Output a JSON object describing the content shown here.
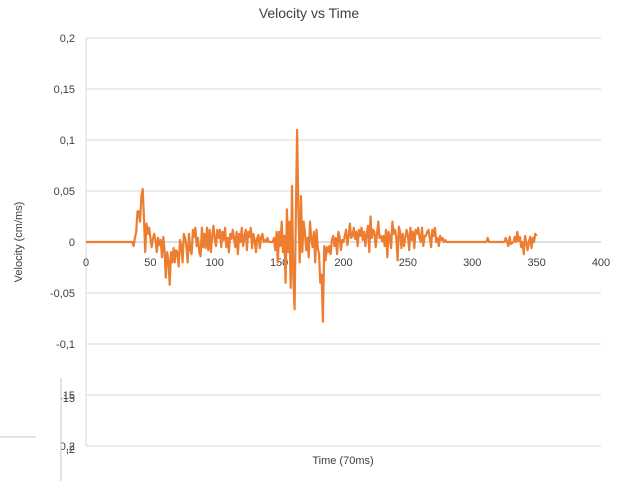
{
  "chart_data": {
    "type": "line",
    "title": "Velocity  vs Time",
    "xlabel": "Time (70ms)",
    "ylabel": "Velocity (cm/ms)",
    "xlim": [
      0,
      400
    ],
    "ylim": [
      -0.2,
      0.2
    ],
    "x_ticks": [
      "0",
      "50",
      "100",
      "150",
      "200",
      "250",
      "300",
      "350",
      "400"
    ],
    "y_ticks": [
      "0,2",
      "0,15",
      "0,1",
      "0,05",
      "0",
      "-0,05",
      "-0,1",
      "-0,15",
      "-0,2"
    ],
    "occluded_y_tick_labels": [
      "15",
      ",2"
    ],
    "grid": "horizontal",
    "legend": "none",
    "series": [
      {
        "color": "#ED7D31",
        "points": [
          [
            0,
            0
          ],
          [
            10,
            0
          ],
          [
            20,
            0
          ],
          [
            30,
            0
          ],
          [
            36,
            0
          ],
          [
            37,
            -0.004
          ],
          [
            38,
            0.004
          ],
          [
            39,
            0.01
          ],
          [
            40,
            0.03
          ],
          [
            41,
            0.03
          ],
          [
            42,
            0.02
          ],
          [
            43,
            0.045
          ],
          [
            44,
            0.052
          ],
          [
            45,
            0.025
          ],
          [
            46,
            -0.01
          ],
          [
            47,
            0.018
          ],
          [
            48,
            0.008
          ],
          [
            49,
            0.014
          ],
          [
            50,
            0.004
          ],
          [
            51,
            -0.005
          ],
          [
            52,
            0.003
          ],
          [
            53,
            0.008
          ],
          [
            54,
            0.002
          ],
          [
            55,
            -0.01
          ],
          [
            56,
            0.004
          ],
          [
            57,
            -0.003
          ],
          [
            58,
            0.002
          ],
          [
            59,
            -0.015
          ],
          [
            60,
            0.005
          ],
          [
            61,
            -0.008
          ],
          [
            62,
            -0.035
          ],
          [
            63,
            -0.01
          ],
          [
            64,
            -0.018
          ],
          [
            65,
            -0.042
          ],
          [
            66,
            -0.01
          ],
          [
            67,
            -0.02
          ],
          [
            68,
            -0.006
          ],
          [
            69,
            -0.02
          ],
          [
            70,
            -0.008
          ],
          [
            71,
            -0.01
          ],
          [
            72,
            -0.024
          ],
          [
            73,
            0.002
          ],
          [
            74,
            -0.004
          ],
          [
            75,
            -0.02
          ],
          [
            76,
            0.008
          ],
          [
            77,
            0.004
          ],
          [
            78,
            -0.004
          ],
          [
            79,
            -0.02
          ],
          [
            80,
            0.008
          ],
          [
            81,
            -0.008
          ],
          [
            82,
            -0.012
          ],
          [
            83,
            0.012
          ],
          [
            84,
            0.005
          ],
          [
            85,
            0.014
          ],
          [
            86,
            -0.004
          ],
          [
            87,
            0.004
          ],
          [
            88,
            -0.01
          ],
          [
            89,
            -0.014
          ],
          [
            90,
            0.014
          ],
          [
            91,
            -0.005
          ],
          [
            92,
            0.008
          ],
          [
            93,
            -0.006
          ],
          [
            94,
            0.014
          ],
          [
            95,
            -0.008
          ],
          [
            96,
            0.012
          ],
          [
            97,
            -0.01
          ],
          [
            98,
            0.006
          ],
          [
            99,
            0.016
          ],
          [
            100,
            0.002
          ],
          [
            101,
            -0.004
          ],
          [
            102,
            0.012
          ],
          [
            103,
            0.004
          ],
          [
            104,
            0.012
          ],
          [
            105,
            -0.005
          ],
          [
            106,
            0.01
          ],
          [
            107,
            0.002
          ],
          [
            108,
            0.014
          ],
          [
            109,
            -0.005
          ],
          [
            110,
            0.004
          ],
          [
            111,
            -0.01
          ],
          [
            112,
            0.008
          ],
          [
            113,
            0.003
          ],
          [
            114,
            0.012
          ],
          [
            115,
            0.003
          ],
          [
            116,
            -0.005
          ],
          [
            117,
            0.01
          ],
          [
            118,
            -0.012
          ],
          [
            119,
            0.008
          ],
          [
            120,
            0
          ],
          [
            121,
            0.014
          ],
          [
            122,
            -0.004
          ],
          [
            123,
            0.005
          ],
          [
            124,
            0.012
          ],
          [
            125,
            -0.008
          ],
          [
            126,
            0.01
          ],
          [
            127,
            0.005
          ],
          [
            128,
            0.014
          ],
          [
            129,
            -0.006
          ],
          [
            130,
            0.008
          ],
          [
            131,
            0.002
          ],
          [
            132,
            -0.01
          ],
          [
            133,
            0.004
          ],
          [
            134,
            0.007
          ],
          [
            135,
            -0.006
          ],
          [
            136,
            0.004
          ],
          [
            137,
            0.008
          ],
          [
            138,
            0
          ],
          [
            139,
            0.002
          ],
          [
            140,
            0
          ],
          [
            141,
            0.004
          ],
          [
            142,
            0
          ],
          [
            145,
            0
          ],
          [
            146,
            0.004
          ],
          [
            147,
            -0.008
          ],
          [
            148,
            0.01
          ],
          [
            149,
            -0.02
          ],
          [
            150,
            0.01
          ],
          [
            151,
            -0.004
          ],
          [
            152,
            0.02
          ],
          [
            153,
            -0.01
          ],
          [
            154,
            0.006
          ],
          [
            155,
            -0.04
          ],
          [
            156,
            0.032
          ],
          [
            157,
            -0.01
          ],
          [
            158,
            0.02
          ],
          [
            159,
            -0.045
          ],
          [
            160,
            0.055
          ],
          [
            161,
            -0.035
          ],
          [
            162,
            -0.066
          ],
          [
            163,
            0.03
          ],
          [
            164,
            0.11
          ],
          [
            165,
            0.03
          ],
          [
            166,
            -0.02
          ],
          [
            167,
            0.045
          ],
          [
            168,
            -0.01
          ],
          [
            169,
            0.02
          ],
          [
            170,
            0.01
          ],
          [
            171,
            -0.008
          ],
          [
            172,
            0.004
          ],
          [
            173,
            -0.015
          ],
          [
            174,
            0.02
          ],
          [
            175,
            0.003
          ],
          [
            176,
            -0.005
          ],
          [
            177,
            0.01
          ],
          [
            178,
            -0.02
          ],
          [
            179,
            0.012
          ],
          [
            180,
            -0.006
          ],
          [
            181,
            -0.012
          ],
          [
            182,
            -0.04
          ],
          [
            183,
            -0.032
          ],
          [
            184,
            -0.078
          ],
          [
            185,
            -0.004
          ],
          [
            186,
            -0.018
          ],
          [
            187,
            -0.005
          ],
          [
            188,
            -0.01
          ],
          [
            189,
            -0.004
          ],
          [
            190,
            -0.012
          ],
          [
            191,
            0.002
          ],
          [
            192,
            0.006
          ],
          [
            193,
            -0.004
          ],
          [
            194,
            0.004
          ],
          [
            195,
            -0.012
          ],
          [
            196,
            0.01
          ],
          [
            197,
            0.005
          ],
          [
            198,
            -0.008
          ],
          [
            199,
            0.002
          ],
          [
            200,
            0
          ],
          [
            201,
            0.006
          ],
          [
            202,
            0.012
          ],
          [
            203,
            -0.003
          ],
          [
            204,
            0.005
          ],
          [
            205,
            0.018
          ],
          [
            206,
            0.004
          ],
          [
            207,
            0.006
          ],
          [
            208,
            0.014
          ],
          [
            209,
            0.003
          ],
          [
            210,
            0.01
          ],
          [
            211,
            -0.004
          ],
          [
            212,
            0.012
          ],
          [
            213,
            0.006
          ],
          [
            214,
            0.014
          ],
          [
            215,
            0.002
          ],
          [
            216,
            0.01
          ],
          [
            217,
            -0.004
          ],
          [
            218,
            0.008
          ],
          [
            219,
            0.016
          ],
          [
            220,
            -0.01
          ],
          [
            221,
            0.025
          ],
          [
            222,
            0.004
          ],
          [
            223,
            0.012
          ],
          [
            224,
            0.01
          ],
          [
            225,
            -0.005
          ],
          [
            226,
            0.008
          ],
          [
            227,
            0.02
          ],
          [
            228,
            0.004
          ],
          [
            229,
            0.006
          ],
          [
            230,
            0.001
          ],
          [
            231,
            0.006
          ],
          [
            232,
            -0.004
          ],
          [
            233,
            0.012
          ],
          [
            234,
            -0.015
          ],
          [
            235,
            0.01
          ],
          [
            236,
            0.005
          ],
          [
            237,
            -0.006
          ],
          [
            238,
            0.02
          ],
          [
            239,
            0.008
          ],
          [
            240,
            0.012
          ],
          [
            241,
            0.004
          ],
          [
            242,
            -0.018
          ],
          [
            243,
            0.015
          ],
          [
            244,
            0.01
          ],
          [
            245,
            -0.006
          ],
          [
            246,
            0.008
          ],
          [
            247,
            -0.004
          ],
          [
            248,
            0.004
          ],
          [
            249,
            0.012
          ],
          [
            250,
            0.006
          ],
          [
            251,
            -0.008
          ],
          [
            252,
            0.014
          ],
          [
            253,
            0.002
          ],
          [
            254,
            0.01
          ],
          [
            255,
            -0.006
          ],
          [
            256,
            0.012
          ],
          [
            257,
            0.008
          ],
          [
            258,
            0.014
          ],
          [
            259,
            0.004
          ],
          [
            260,
            0
          ],
          [
            261,
            0.014
          ],
          [
            262,
            -0.004
          ],
          [
            263,
            0.006
          ],
          [
            264,
            0.006
          ],
          [
            265,
            0.01
          ],
          [
            266,
            0.012
          ],
          [
            267,
            0.004
          ],
          [
            268,
            -0.005
          ],
          [
            269,
            0.012
          ],
          [
            270,
            0.006
          ],
          [
            271,
            0.014
          ],
          [
            272,
            0
          ],
          [
            273,
            0.004
          ],
          [
            274,
            -0.004
          ],
          [
            275,
            0.006
          ],
          [
            276,
            0.002
          ],
          [
            277,
            0.004
          ],
          [
            278,
            0
          ],
          [
            279,
            0.002
          ],
          [
            280,
            0
          ],
          [
            295,
            0
          ],
          [
            311,
            0
          ],
          [
            312,
            0.004
          ],
          [
            313,
            0
          ],
          [
            325,
            0
          ],
          [
            326,
            0.004
          ],
          [
            327,
            0
          ],
          [
            328,
            -0.004
          ],
          [
            329,
            0.005
          ],
          [
            330,
            -0.002
          ],
          [
            332,
            0
          ],
          [
            333,
            0.005
          ],
          [
            334,
            0
          ],
          [
            335,
            0.01
          ],
          [
            336,
            0.001
          ],
          [
            337,
            0.005
          ],
          [
            338,
            -0.005
          ],
          [
            339,
            0
          ],
          [
            340,
            -0.012
          ],
          [
            341,
            0.006
          ],
          [
            342,
            0
          ],
          [
            343,
            -0.008
          ],
          [
            344,
            0
          ],
          [
            345,
            0.005
          ],
          [
            346,
            -0.006
          ],
          [
            347,
            0.004
          ],
          [
            348,
            0
          ],
          [
            349,
            0.008
          ],
          [
            350,
            0.006
          ]
        ]
      }
    ]
  }
}
